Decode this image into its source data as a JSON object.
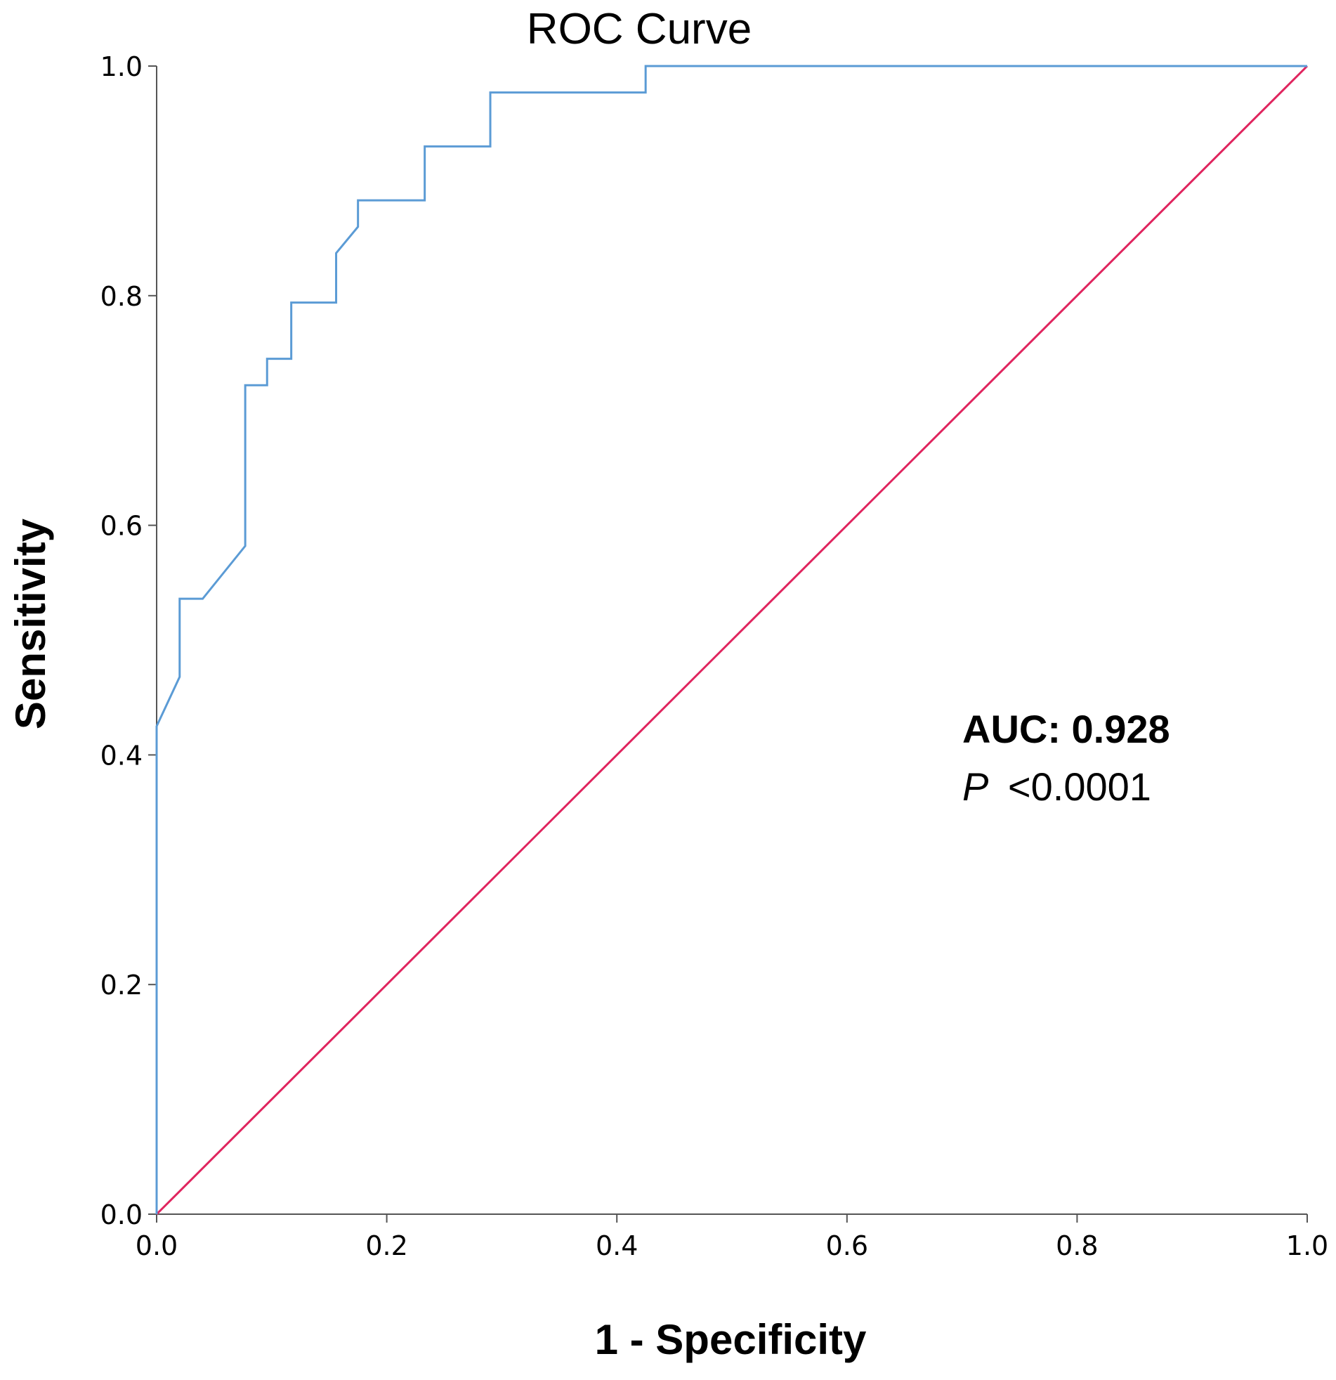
{
  "chart_data": {
    "type": "line",
    "title": "ROC Curve",
    "xlabel": "1 - Specificity",
    "ylabel": "Sensitivity",
    "xlim": [
      0,
      1
    ],
    "ylim": [
      0,
      1
    ],
    "x_ticks": [
      "0.0",
      "0.2",
      "0.4",
      "0.6",
      "0.8",
      "1.0"
    ],
    "y_ticks": [
      "0.0",
      "0.2",
      "0.4",
      "0.6",
      "0.8",
      "1.0"
    ],
    "grid": false,
    "legend": "none",
    "colors": {
      "roc_curve": "#5b9bd5",
      "reference_line": "#e0245e",
      "axis": "#555555"
    },
    "series": [
      {
        "points": [
          [
            0,
            0
          ],
          [
            0,
            0.425
          ],
          [
            0.02,
            0.468
          ],
          [
            0.02,
            0.536
          ],
          [
            0.04,
            0.536
          ],
          [
            0.077,
            0.582
          ],
          [
            0.077,
            0.722
          ],
          [
            0.096,
            0.722
          ],
          [
            0.096,
            0.745
          ],
          [
            0.117,
            0.745
          ],
          [
            0.117,
            0.794
          ],
          [
            0.156,
            0.794
          ],
          [
            0.156,
            0.837
          ],
          [
            0.175,
            0.86
          ],
          [
            0.175,
            0.883
          ],
          [
            0.233,
            0.883
          ],
          [
            0.233,
            0.93
          ],
          [
            0.29,
            0.93
          ],
          [
            0.29,
            0.977
          ],
          [
            0.425,
            0.977
          ],
          [
            0.425,
            1.0
          ],
          [
            1.0,
            1.0
          ]
        ]
      },
      {
        "points": [
          [
            0,
            0
          ],
          [
            1,
            1
          ]
        ]
      }
    ],
    "annotations": {
      "auc_label": "AUC: 0.928",
      "p_symbol": "P",
      "p_value": "<0.0001"
    }
  }
}
